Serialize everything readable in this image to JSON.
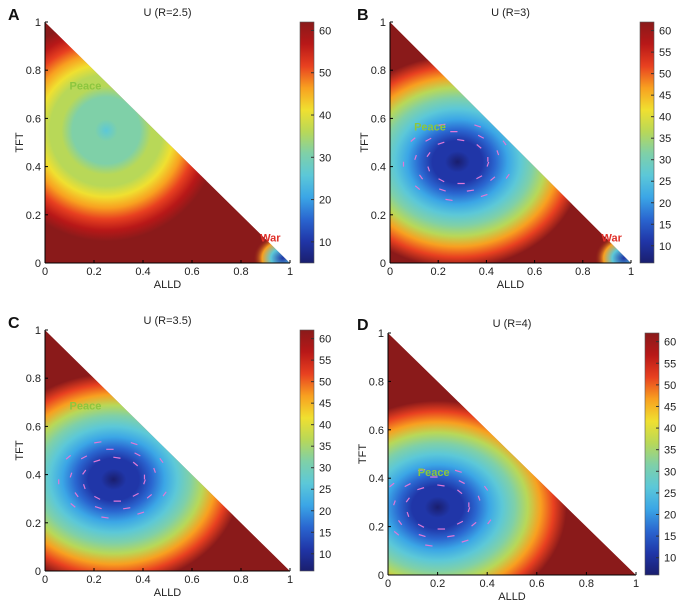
{
  "colorscale": {
    "colors": [
      "#1a1e6e",
      "#2036a8",
      "#2a66d0",
      "#3ba6e6",
      "#5cc8d8",
      "#7fd0a8",
      "#b8d858",
      "#f0e030",
      "#f8a020",
      "#e84020",
      "#b81818",
      "#8a1a1a"
    ]
  },
  "chart_data": [
    {
      "type": "heatmap",
      "panel_letter": "A",
      "title": "U (R=2.5)",
      "xlabel": "ALLD",
      "ylabel": "TFT",
      "xlim": [
        0,
        1
      ],
      "ylim": [
        0,
        1
      ],
      "x_ticks": [
        "0",
        "0.2",
        "0.4",
        "0.6",
        "0.8",
        "1"
      ],
      "y_ticks": [
        "0",
        "0.2",
        "0.4",
        "0.6",
        "0.8",
        "1"
      ],
      "colorbar_ticks": [
        "10",
        "20",
        "30",
        "40",
        "50",
        "60"
      ],
      "colorbar_range": [
        5,
        62
      ],
      "annotations": [
        {
          "text": "Peace",
          "color": "#8cc63f",
          "x": 0.1,
          "y": 0.72
        },
        {
          "text": "War",
          "color": "#e0302a",
          "x": 0.92,
          "y": 0.09
        }
      ],
      "basin": {
        "center": [
          0.25,
          0.55
        ],
        "min_value": 28,
        "has_arrows": false
      }
    },
    {
      "type": "heatmap",
      "panel_letter": "B",
      "title": "U (R=3)",
      "xlabel": "ALLD",
      "ylabel": "TFT",
      "xlim": [
        0,
        1
      ],
      "ylim": [
        0,
        1
      ],
      "x_ticks": [
        "0",
        "0.2",
        "0.4",
        "0.6",
        "0.8",
        "1"
      ],
      "y_ticks": [
        "0",
        "0.2",
        "0.4",
        "0.6",
        "0.8",
        "1"
      ],
      "colorbar_ticks": [
        "10",
        "15",
        "20",
        "25",
        "30",
        "35",
        "40",
        "45",
        "50",
        "55",
        "60"
      ],
      "colorbar_range": [
        6,
        62
      ],
      "annotations": [
        {
          "text": "Peace",
          "color": "#8cc63f",
          "x": 0.1,
          "y": 0.55
        },
        {
          "text": "War",
          "color": "#e0302a",
          "x": 0.92,
          "y": 0.09
        }
      ],
      "basin": {
        "center": [
          0.28,
          0.42
        ],
        "min_value": 8,
        "has_arrows": true
      }
    },
    {
      "type": "heatmap",
      "panel_letter": "C",
      "title": "U (R=3.5)",
      "xlabel": "ALLD",
      "ylabel": "TFT",
      "xlim": [
        0,
        1
      ],
      "ylim": [
        0,
        1
      ],
      "x_ticks": [
        "0",
        "0.2",
        "0.4",
        "0.6",
        "0.8",
        "1"
      ],
      "y_ticks": [
        "0",
        "0.2",
        "0.4",
        "0.6",
        "0.8",
        "1"
      ],
      "colorbar_ticks": [
        "10",
        "15",
        "20",
        "25",
        "30",
        "35",
        "40",
        "45",
        "50",
        "55",
        "60"
      ],
      "colorbar_range": [
        6,
        62
      ],
      "annotations": [
        {
          "text": "Peace",
          "color": "#8cc63f",
          "x": 0.1,
          "y": 0.67
        }
      ],
      "basin": {
        "center": [
          0.28,
          0.38
        ],
        "min_value": 8,
        "has_arrows": true
      }
    },
    {
      "type": "heatmap",
      "panel_letter": "D",
      "title": "U (R=4)",
      "xlabel": "ALLD",
      "ylabel": "TFT",
      "xlim": [
        0,
        1
      ],
      "ylim": [
        0,
        1
      ],
      "x_ticks": [
        "0",
        "0.2",
        "0.4",
        "0.6",
        "0.8",
        "1"
      ],
      "y_ticks": [
        "0",
        "0.2",
        "0.4",
        "0.6",
        "0.8",
        "1"
      ],
      "colorbar_ticks": [
        "10",
        "15",
        "20",
        "25",
        "30",
        "35",
        "40",
        "45",
        "50",
        "55",
        "60"
      ],
      "colorbar_range": [
        6,
        62
      ],
      "annotations": [
        {
          "text": "Peace",
          "color": "#8cc63f",
          "x": 0.12,
          "y": 0.41
        }
      ],
      "basin": {
        "center": [
          0.2,
          0.28
        ],
        "min_value": 8,
        "has_arrows": true
      }
    }
  ]
}
